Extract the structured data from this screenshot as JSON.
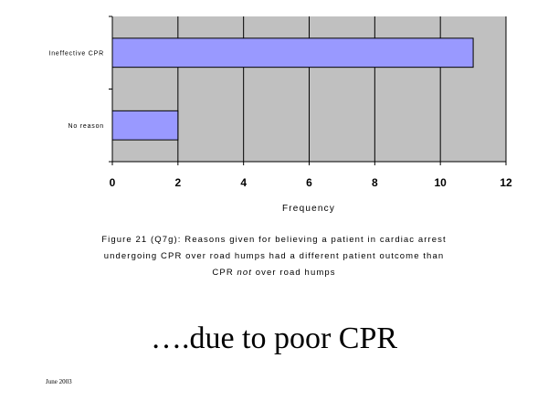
{
  "chart_data": {
    "type": "bar",
    "orientation": "horizontal",
    "categories": [
      "Ineffective CPR",
      "No reason"
    ],
    "values": [
      11,
      2
    ],
    "xlabel": "Frequency",
    "xlim": [
      0,
      12
    ],
    "xticks": [
      "0",
      "2",
      "4",
      "6",
      "8",
      "10",
      "12"
    ],
    "grid": true,
    "colors": {
      "bar": "#9999ff",
      "plot_bg": "#c0c0c0",
      "bar_border": "#000000"
    }
  },
  "caption": {
    "line1": "Figure 21 (Q7g): Reasons given for believing a patient in cardiac arrest",
    "line2": "undergoing CPR over road humps had a different patient outcome than",
    "line3_before": "CPR ",
    "line3_em": "not",
    "line3_after": " over road humps"
  },
  "headline": "….due to poor CPR",
  "footer": {
    "date": "June 2003"
  }
}
